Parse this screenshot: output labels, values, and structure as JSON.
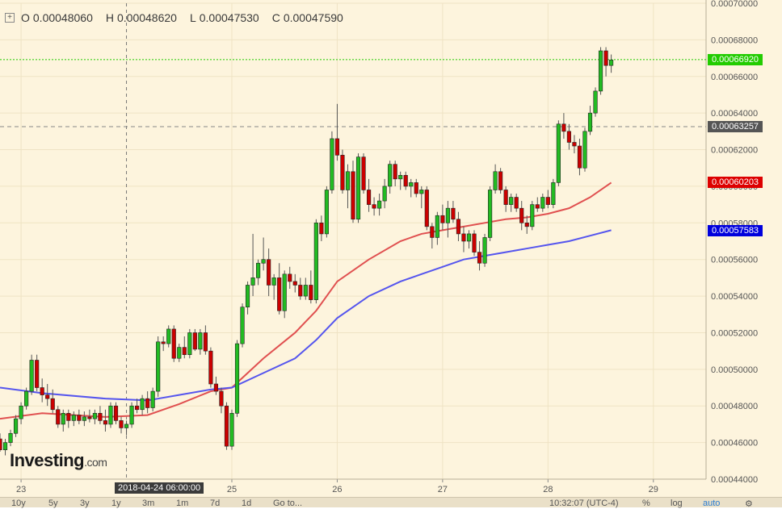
{
  "ohlc": {
    "open_label": "O",
    "open": "0.00048060",
    "high_label": "H",
    "high": "0.00048620",
    "low_label": "L",
    "low": "0.00047530",
    "close_label": "C",
    "close": "0.00047590"
  },
  "watermark": {
    "brand": "Investing",
    "suffix": ".com"
  },
  "crosshair": {
    "date_label": "2018-04-24 06:00:00",
    "price_label": "0.00063257"
  },
  "price_tags": {
    "last": {
      "value": "0.00066920",
      "color": "#22cc00"
    },
    "crosshair": {
      "value": "0.00063257",
      "color": "#555555"
    },
    "ma_red": {
      "value": "0.00060203",
      "color": "#dd0000"
    },
    "ma_blue": {
      "value": "0.00057583",
      "color": "#0000dd"
    }
  },
  "toolbar": {
    "ranges": [
      "10y",
      "5y",
      "3y",
      "1y",
      "3m",
      "1m",
      "7d",
      "1d"
    ],
    "goto": "Go to...",
    "time": "10:32:07 (UTC-4)",
    "percent": "%",
    "log": "log",
    "auto": "auto"
  },
  "colors": {
    "up": "#22bb22",
    "down": "#cc0000",
    "ma_red": "#e05050",
    "ma_blue": "#5555ee",
    "background": "#fdf4dd"
  },
  "chart_data": {
    "type": "candlestick",
    "x_tick_labels": [
      "23",
      "25",
      "26",
      "27",
      "28",
      "29"
    ],
    "x_label": "",
    "y_label": "",
    "y_tick_labels": [
      "0.00044000",
      "0.00046000",
      "0.00048000",
      "0.00050000",
      "0.00052000",
      "0.00054000",
      "0.00056000",
      "0.00058000",
      "0.00060000",
      "0.00062000",
      "0.00064000",
      "0.00066000",
      "0.00068000",
      "0.00070000"
    ],
    "ylim": [
      0.00044,
      0.0007
    ],
    "xlim": [
      22.8,
      29.5
    ],
    "candle_period_hours": 1,
    "candles": [
      [
        22.8,
        0.000462,
        0.000465,
        0.000455,
        0.000456
      ],
      [
        22.85,
        0.000456,
        0.000462,
        0.000453,
        0.00046
      ],
      [
        22.9,
        0.00046,
        0.000467,
        0.000458,
        0.000465
      ],
      [
        22.95,
        0.000465,
        0.000475,
        0.000463,
        0.000473
      ],
      [
        23.0,
        0.000473,
        0.000482,
        0.00047,
        0.00048
      ],
      [
        23.05,
        0.00048,
        0.00049,
        0.000478,
        0.000488
      ],
      [
        23.1,
        0.000488,
        0.000508,
        0.000486,
        0.000505
      ],
      [
        23.15,
        0.000505,
        0.000508,
        0.000488,
        0.00049
      ],
      [
        23.2,
        0.00049,
        0.000495,
        0.000482,
        0.000486
      ],
      [
        23.25,
        0.000486,
        0.000492,
        0.00048,
        0.000484
      ],
      [
        23.3,
        0.000484,
        0.000489,
        0.000476,
        0.000478
      ],
      [
        23.35,
        0.000478,
        0.00048,
        0.000468,
        0.00047
      ],
      [
        23.4,
        0.00047,
        0.000478,
        0.000466,
        0.000476
      ],
      [
        23.45,
        0.000476,
        0.000478,
        0.000468,
        0.000472
      ],
      [
        23.5,
        0.000472,
        0.000477,
        0.000469,
        0.000475
      ],
      [
        23.55,
        0.000475,
        0.000478,
        0.00047,
        0.000472
      ],
      [
        23.6,
        0.000472,
        0.000477,
        0.000469,
        0.000474
      ],
      [
        23.65,
        0.000474,
        0.000478,
        0.000471,
        0.000473
      ],
      [
        23.7,
        0.000473,
        0.000478,
        0.00047,
        0.000476
      ],
      [
        23.75,
        0.000476,
        0.00048,
        0.00047,
        0.000472
      ],
      [
        23.8,
        0.000472,
        0.000478,
        0.000466,
        0.00047
      ],
      [
        23.85,
        0.00047,
        0.000482,
        0.000468,
        0.00048
      ],
      [
        23.9,
        0.00048,
        0.000482,
        0.00047,
        0.000472
      ],
      [
        23.95,
        0.000472,
        0.000474,
        0.000465,
        0.000468
      ],
      [
        24.0,
        0.000468,
        0.000472,
        0.000464,
        0.00047
      ],
      [
        24.05,
        0.00047,
        0.000482,
        0.000468,
        0.00048
      ],
      [
        24.1,
        0.00048,
        0.000484,
        0.000476,
        0.000478
      ],
      [
        24.15,
        0.000478,
        0.000486,
        0.000475,
        0.000484
      ],
      [
        24.2,
        0.000484,
        0.000488,
        0.000476,
        0.000479
      ],
      [
        24.25,
        0.000479,
        0.00049,
        0.000477,
        0.000488
      ],
      [
        24.3,
        0.000488,
        0.000518,
        0.000485,
        0.000515
      ],
      [
        24.35,
        0.000515,
        0.000518,
        0.00051,
        0.000514
      ],
      [
        24.4,
        0.000514,
        0.000524,
        0.000512,
        0.000522
      ],
      [
        24.45,
        0.000522,
        0.000524,
        0.000504,
        0.000506
      ],
      [
        24.5,
        0.000506,
        0.000514,
        0.000504,
        0.000512
      ],
      [
        24.55,
        0.000512,
        0.000518,
        0.000506,
        0.000508
      ],
      [
        24.6,
        0.000508,
        0.000522,
        0.000506,
        0.00052
      ],
      [
        24.65,
        0.00052,
        0.000522,
        0.00051,
        0.000511
      ],
      [
        24.7,
        0.000511,
        0.000522,
        0.000508,
        0.00052
      ],
      [
        24.75,
        0.00052,
        0.000524,
        0.000508,
        0.00051
      ],
      [
        24.8,
        0.00051,
        0.000512,
        0.00049,
        0.000492
      ],
      [
        24.85,
        0.000492,
        0.000496,
        0.000486,
        0.000488
      ],
      [
        24.9,
        0.000488,
        0.00049,
        0.000476,
        0.00048
      ],
      [
        24.95,
        0.00048,
        0.000482,
        0.000456,
        0.000458
      ],
      [
        25.0,
        0.000458,
        0.000478,
        0.000456,
        0.000476
      ],
      [
        25.05,
        0.000476,
        0.000516,
        0.000474,
        0.000514
      ],
      [
        25.1,
        0.000514,
        0.000536,
        0.000512,
        0.000534
      ],
      [
        25.15,
        0.000534,
        0.000548,
        0.00053,
        0.000546
      ],
      [
        25.2,
        0.000546,
        0.000574,
        0.00054,
        0.00055
      ],
      [
        25.25,
        0.00055,
        0.00056,
        0.000546,
        0.000558
      ],
      [
        25.3,
        0.000558,
        0.000572,
        0.000554,
        0.00056
      ],
      [
        25.35,
        0.00056,
        0.000566,
        0.00054,
        0.000546
      ],
      [
        25.4,
        0.000546,
        0.000552,
        0.000538,
        0.00055
      ],
      [
        25.45,
        0.00055,
        0.000558,
        0.00053,
        0.000532
      ],
      [
        25.5,
        0.000532,
        0.000554,
        0.000528,
        0.000552
      ],
      [
        25.55,
        0.000552,
        0.000556,
        0.000544,
        0.000548
      ],
      [
        25.6,
        0.000548,
        0.000552,
        0.000542,
        0.000546
      ],
      [
        25.65,
        0.000546,
        0.00055,
        0.000538,
        0.00054
      ],
      [
        25.7,
        0.00054,
        0.00055,
        0.000538,
        0.000546
      ],
      [
        25.75,
        0.000546,
        0.000554,
        0.000536,
        0.000538
      ],
      [
        25.8,
        0.000538,
        0.000582,
        0.000536,
        0.00058
      ],
      [
        25.85,
        0.00058,
        0.000584,
        0.00057,
        0.000574
      ],
      [
        25.9,
        0.000574,
        0.0006,
        0.000572,
        0.000598
      ],
      [
        25.95,
        0.000598,
        0.00063,
        0.000596,
        0.000626
      ],
      [
        26.0,
        0.000626,
        0.000645,
        0.000614,
        0.000617
      ],
      [
        26.05,
        0.000617,
        0.00062,
        0.000596,
        0.000598
      ],
      [
        26.1,
        0.000598,
        0.000612,
        0.000588,
        0.000608
      ],
      [
        26.15,
        0.000608,
        0.000614,
        0.00058,
        0.000582
      ],
      [
        26.2,
        0.000582,
        0.000618,
        0.00058,
        0.000616
      ],
      [
        26.25,
        0.000616,
        0.000618,
        0.000596,
        0.000598
      ],
      [
        26.3,
        0.000598,
        0.000604,
        0.000586,
        0.00059
      ],
      [
        26.35,
        0.00059,
        0.000594,
        0.000584,
        0.000588
      ],
      [
        26.4,
        0.000588,
        0.000596,
        0.000584,
        0.000592
      ],
      [
        26.45,
        0.000592,
        0.000604,
        0.000588,
        0.0006
      ],
      [
        26.5,
        0.0006,
        0.000614,
        0.000596,
        0.000612
      ],
      [
        26.55,
        0.000612,
        0.000614,
        0.0006,
        0.000604
      ],
      [
        26.6,
        0.000604,
        0.000608,
        0.000598,
        0.000606
      ],
      [
        26.65,
        0.000606,
        0.000608,
        0.000598,
        0.0006
      ],
      [
        26.7,
        0.0006,
        0.000604,
        0.000594,
        0.000602
      ],
      [
        26.75,
        0.000602,
        0.000604,
        0.000594,
        0.000596
      ],
      [
        26.8,
        0.000596,
        0.0006,
        0.000588,
        0.000598
      ],
      [
        26.85,
        0.000598,
        0.0006,
        0.000576,
        0.000578
      ],
      [
        26.9,
        0.000578,
        0.00058,
        0.000566,
        0.000572
      ],
      [
        26.95,
        0.000572,
        0.000586,
        0.000568,
        0.000584
      ],
      [
        27.0,
        0.000584,
        0.00059,
        0.000576,
        0.00058
      ],
      [
        27.05,
        0.00058,
        0.000592,
        0.000572,
        0.000588
      ],
      [
        27.1,
        0.000588,
        0.000592,
        0.00058,
        0.000582
      ],
      [
        27.15,
        0.000582,
        0.000586,
        0.00057,
        0.000574
      ],
      [
        27.2,
        0.000574,
        0.000578,
        0.000564,
        0.00057
      ],
      [
        27.25,
        0.00057,
        0.000576,
        0.000566,
        0.000574
      ],
      [
        27.3,
        0.000574,
        0.000576,
        0.000562,
        0.000564
      ],
      [
        27.35,
        0.000564,
        0.00057,
        0.000554,
        0.000558
      ],
      [
        27.4,
        0.000558,
        0.000574,
        0.000556,
        0.000572
      ],
      [
        27.45,
        0.000572,
        0.0006,
        0.00057,
        0.000598
      ],
      [
        27.5,
        0.000598,
        0.000612,
        0.000596,
        0.000608
      ],
      [
        27.55,
        0.000608,
        0.00061,
        0.000596,
        0.000598
      ],
      [
        27.6,
        0.000598,
        0.0006,
        0.000586,
        0.00059
      ],
      [
        27.65,
        0.00059,
        0.000596,
        0.000586,
        0.000594
      ],
      [
        27.7,
        0.000594,
        0.000596,
        0.000586,
        0.000588
      ],
      [
        27.75,
        0.000588,
        0.000592,
        0.000576,
        0.00058
      ],
      [
        27.8,
        0.00058,
        0.000584,
        0.000574,
        0.000578
      ],
      [
        27.85,
        0.000578,
        0.000592,
        0.000576,
        0.00059
      ],
      [
        27.9,
        0.00059,
        0.000594,
        0.000586,
        0.000588
      ],
      [
        27.95,
        0.000588,
        0.000596,
        0.000586,
        0.000594
      ],
      [
        28.0,
        0.000594,
        0.000598,
        0.000588,
        0.00059
      ],
      [
        28.05,
        0.00059,
        0.000604,
        0.000588,
        0.000602
      ],
      [
        28.1,
        0.000602,
        0.000636,
        0.0006,
        0.000634
      ],
      [
        28.15,
        0.000634,
        0.00064,
        0.000626,
        0.00063
      ],
      [
        28.2,
        0.00063,
        0.000634,
        0.00062,
        0.000624
      ],
      [
        28.25,
        0.000624,
        0.000628,
        0.000618,
        0.000622
      ],
      [
        28.3,
        0.000622,
        0.000626,
        0.000606,
        0.00061
      ],
      [
        28.35,
        0.00061,
        0.000632,
        0.000608,
        0.00063
      ],
      [
        28.4,
        0.00063,
        0.000644,
        0.000628,
        0.00064
      ],
      [
        28.45,
        0.00064,
        0.000654,
        0.000638,
        0.000652
      ],
      [
        28.5,
        0.000652,
        0.000676,
        0.00065,
        0.000674
      ],
      [
        28.55,
        0.000674,
        0.000676,
        0.00066,
        0.000666
      ],
      [
        28.6,
        0.000666,
        0.000672,
        0.000662,
        0.000669
      ]
    ],
    "series": [
      {
        "name": "",
        "color": "#e05050",
        "x": [
          22.8,
          23.2,
          23.8,
          24.2,
          24.5,
          24.8,
          25.0,
          25.3,
          25.6,
          25.8,
          26.0,
          26.3,
          26.6,
          26.8,
          27.0,
          27.2,
          27.4,
          27.6,
          27.8,
          28.0,
          28.2,
          28.4,
          28.6
        ],
        "y": [
          0.000473,
          0.000476,
          0.000474,
          0.000475,
          0.000481,
          0.000488,
          0.00049,
          0.000506,
          0.00052,
          0.000532,
          0.000548,
          0.00056,
          0.00057,
          0.000574,
          0.000576,
          0.000578,
          0.00058,
          0.000582,
          0.000583,
          0.000585,
          0.000588,
          0.000594,
          0.000602
        ]
      },
      {
        "name": "",
        "color": "#5555ee",
        "x": [
          22.8,
          23.2,
          23.8,
          24.2,
          24.5,
          24.8,
          25.0,
          25.3,
          25.6,
          25.8,
          26.0,
          26.3,
          26.6,
          26.8,
          27.0,
          27.2,
          27.4,
          27.6,
          27.8,
          28.0,
          28.2,
          28.4,
          28.6
        ],
        "y": [
          0.00049,
          0.000487,
          0.000484,
          0.000483,
          0.000486,
          0.000489,
          0.00049,
          0.000498,
          0.000506,
          0.000516,
          0.000528,
          0.00054,
          0.000548,
          0.000552,
          0.000556,
          0.00056,
          0.000562,
          0.000564,
          0.000566,
          0.000568,
          0.00057,
          0.000573,
          0.000576
        ]
      }
    ],
    "horizontal_lines": [
      {
        "y": 0.0006692,
        "style": "dotted",
        "color": "#22cc00"
      },
      {
        "y": 0.00063257,
        "style": "dashed",
        "color": "#888888"
      }
    ],
    "crosshair_x": 24.0,
    "grid": true
  }
}
